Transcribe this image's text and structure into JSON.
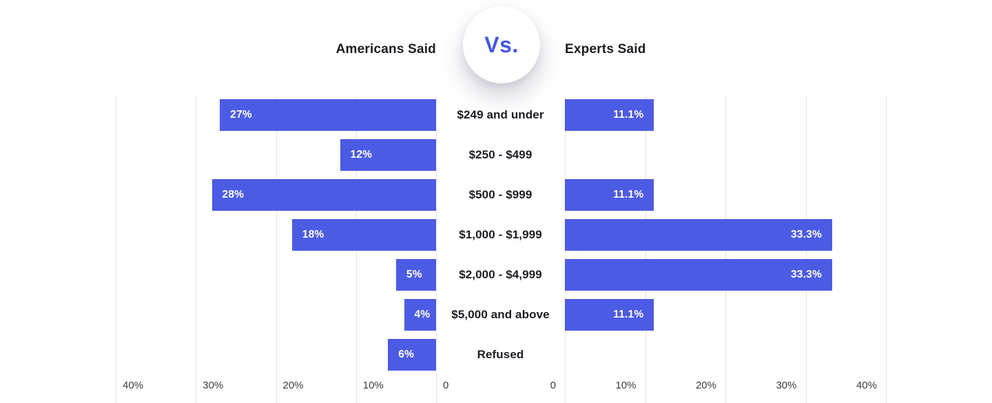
{
  "header": {
    "left_title": "Americans Said",
    "vs_label": "Vs.",
    "right_title": "Experts Said"
  },
  "chart_data": {
    "type": "bar",
    "variant": "diverging-horizontal",
    "title": "Americans Said Vs. Experts Said",
    "categories": [
      "$249 and under",
      "$250 - $499",
      "$500 - $999",
      "$1,000 - $1,999",
      "$2,000 - $4,999",
      "$5,000 and above",
      "Refused"
    ],
    "series": [
      {
        "name": "Americans Said",
        "side": "left",
        "values": [
          27,
          12,
          28,
          18,
          5,
          4,
          6
        ],
        "labels": [
          "27%",
          "12%",
          "28%",
          "18%",
          "5%",
          "4%",
          "6%"
        ]
      },
      {
        "name": "Experts Said",
        "side": "right",
        "values": [
          11.1,
          null,
          11.1,
          33.3,
          33.3,
          11.1,
          null
        ],
        "labels": [
          "11.1%",
          "",
          "11.1%",
          "33.3%",
          "33.3%",
          "11.1%",
          ""
        ]
      }
    ],
    "axes": {
      "max": 40,
      "left_ticks": [
        "40%",
        "30%",
        "20%",
        "10%",
        "0"
      ],
      "right_ticks": [
        "0",
        "10%",
        "20%",
        "30%",
        "40%"
      ],
      "grid": true,
      "legend_position": "none"
    },
    "colors": {
      "bar": "#4c5be3",
      "accent": "#4355e8",
      "grid": "#e4e4e8",
      "text": "#1c1c22",
      "axis_text": "#3c3c42",
      "bar_label": "#ffffff",
      "background": "#ffffff"
    }
  }
}
